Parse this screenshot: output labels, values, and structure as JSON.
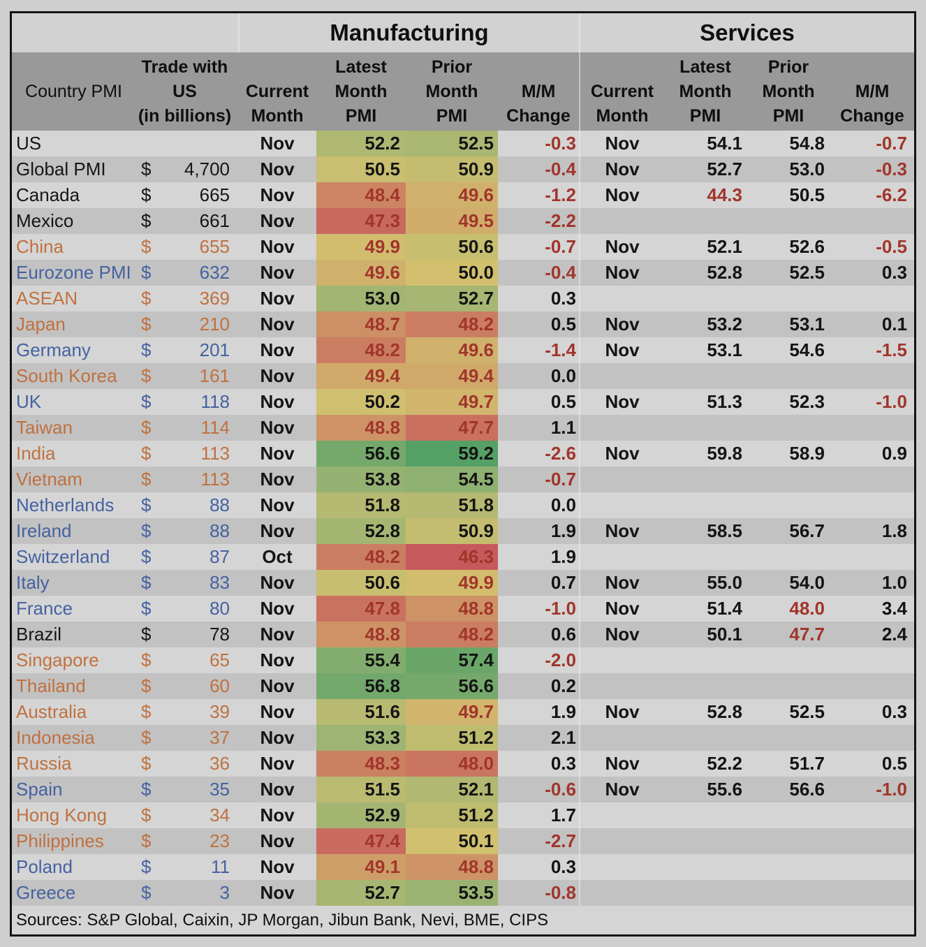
{
  "chart_data": {
    "type": "table",
    "group_headers": {
      "manufacturing": "Manufacturing",
      "services": "Services"
    },
    "columns": {
      "country": "Country PMI",
      "trade": "Trade with\nUS\n(in billions)",
      "m_month": "Current\nMonth",
      "m_latest": "Latest\nMonth\nPMI",
      "m_prior": "Prior\nMonth\nPMI",
      "m_change": "M/M\nChange",
      "s_month": "Current\nMonth",
      "s_latest": "Latest\nMonth\nPMI",
      "s_prior": "Prior\nMonth\nPMI",
      "s_change": "M/M\nChange"
    },
    "rows": [
      {
        "name": "US",
        "accent": "black",
        "trade": null,
        "m": [
          "Nov",
          52.2,
          52.5,
          -0.3
        ],
        "s": [
          "Nov",
          54.1,
          54.8,
          -0.7
        ]
      },
      {
        "name": "Global PMI",
        "accent": "black",
        "trade": "4,700",
        "m": [
          "Nov",
          50.5,
          50.9,
          -0.4
        ],
        "s": [
          "Nov",
          52.7,
          53.0,
          -0.3
        ]
      },
      {
        "name": "Canada",
        "accent": "black",
        "trade": "665",
        "m": [
          "Nov",
          48.4,
          49.6,
          -1.2
        ],
        "s": [
          "Nov",
          44.3,
          50.5,
          -6.2
        ]
      },
      {
        "name": "Mexico",
        "accent": "black",
        "trade": "661",
        "m": [
          "Nov",
          47.3,
          49.5,
          -2.2
        ],
        "s": null
      },
      {
        "name": "China",
        "accent": "orange",
        "trade": "655",
        "m": [
          "Nov",
          49.9,
          50.6,
          -0.7
        ],
        "s": [
          "Nov",
          52.1,
          52.6,
          -0.5
        ]
      },
      {
        "name": "Eurozone PMI",
        "accent": "blue",
        "trade": "632",
        "m": [
          "Nov",
          49.6,
          50.0,
          -0.4
        ],
        "s": [
          "Nov",
          52.8,
          52.5,
          0.3
        ]
      },
      {
        "name": "ASEAN",
        "accent": "orange",
        "trade": "369",
        "m": [
          "Nov",
          53.0,
          52.7,
          0.3
        ],
        "s": null
      },
      {
        "name": "Japan",
        "accent": "orange",
        "trade": "210",
        "m": [
          "Nov",
          48.7,
          48.2,
          0.5
        ],
        "s": [
          "Nov",
          53.2,
          53.1,
          0.1
        ]
      },
      {
        "name": "Germany",
        "accent": "blue",
        "trade": "201",
        "m": [
          "Nov",
          48.2,
          49.6,
          -1.4
        ],
        "s": [
          "Nov",
          53.1,
          54.6,
          -1.5
        ]
      },
      {
        "name": "South Korea",
        "accent": "orange",
        "trade": "161",
        "m": [
          "Nov",
          49.4,
          49.4,
          0.0
        ],
        "s": null
      },
      {
        "name": "UK",
        "accent": "blue",
        "trade": "118",
        "m": [
          "Nov",
          50.2,
          49.7,
          0.5
        ],
        "s": [
          "Nov",
          51.3,
          52.3,
          -1.0
        ]
      },
      {
        "name": "Taiwan",
        "accent": "orange",
        "trade": "114",
        "m": [
          "Nov",
          48.8,
          47.7,
          1.1
        ],
        "s": null
      },
      {
        "name": "India",
        "accent": "orange",
        "trade": "113",
        "m": [
          "Nov",
          56.6,
          59.2,
          -2.6
        ],
        "s": [
          "Nov",
          59.8,
          58.9,
          0.9
        ]
      },
      {
        "name": "Vietnam",
        "accent": "orange",
        "trade": "113",
        "m": [
          "Nov",
          53.8,
          54.5,
          -0.7
        ],
        "s": null
      },
      {
        "name": "Netherlands",
        "accent": "blue",
        "trade": "88",
        "m": [
          "Nov",
          51.8,
          51.8,
          0.0
        ],
        "s": null
      },
      {
        "name": "Ireland",
        "accent": "blue",
        "trade": "88",
        "m": [
          "Nov",
          52.8,
          50.9,
          1.9
        ],
        "s": [
          "Nov",
          58.5,
          56.7,
          1.8
        ]
      },
      {
        "name": "Switzerland",
        "accent": "blue",
        "trade": "87",
        "m": [
          "Oct",
          48.2,
          46.3,
          1.9
        ],
        "s": null
      },
      {
        "name": "Italy",
        "accent": "blue",
        "trade": "83",
        "m": [
          "Nov",
          50.6,
          49.9,
          0.7
        ],
        "s": [
          "Nov",
          55.0,
          54.0,
          1.0
        ]
      },
      {
        "name": "France",
        "accent": "blue",
        "trade": "80",
        "m": [
          "Nov",
          47.8,
          48.8,
          -1.0
        ],
        "s": [
          "Nov",
          51.4,
          48.0,
          3.4
        ]
      },
      {
        "name": "Brazil",
        "accent": "black",
        "trade": "78",
        "m": [
          "Nov",
          48.8,
          48.2,
          0.6
        ],
        "s": [
          "Nov",
          50.1,
          47.7,
          2.4
        ]
      },
      {
        "name": "Singapore",
        "accent": "orange",
        "trade": "65",
        "m": [
          "Nov",
          55.4,
          57.4,
          -2.0
        ],
        "s": null
      },
      {
        "name": "Thailand",
        "accent": "orange",
        "trade": "60",
        "m": [
          "Nov",
          56.8,
          56.6,
          0.2
        ],
        "s": null
      },
      {
        "name": "Australia",
        "accent": "orange",
        "trade": "39",
        "m": [
          "Nov",
          51.6,
          49.7,
          1.9
        ],
        "s": [
          "Nov",
          52.8,
          52.5,
          0.3
        ]
      },
      {
        "name": "Indonesia",
        "accent": "orange",
        "trade": "37",
        "m": [
          "Nov",
          53.3,
          51.2,
          2.1
        ],
        "s": null
      },
      {
        "name": "Russia",
        "accent": "orange",
        "trade": "36",
        "m": [
          "Nov",
          48.3,
          48.0,
          0.3
        ],
        "s": [
          "Nov",
          52.2,
          51.7,
          0.5
        ]
      },
      {
        "name": "Spain",
        "accent": "blue",
        "trade": "35",
        "m": [
          "Nov",
          51.5,
          52.1,
          -0.6
        ],
        "s": [
          "Nov",
          55.6,
          56.6,
          -1.0
        ]
      },
      {
        "name": "Hong Kong",
        "accent": "orange",
        "trade": "34",
        "m": [
          "Nov",
          52.9,
          51.2,
          1.7
        ],
        "s": null
      },
      {
        "name": "Philippines",
        "accent": "orange",
        "trade": "23",
        "m": [
          "Nov",
          47.4,
          50.1,
          -2.7
        ],
        "s": null
      },
      {
        "name": "Poland",
        "accent": "blue",
        "trade": "11",
        "m": [
          "Nov",
          49.1,
          48.8,
          0.3
        ],
        "s": null
      },
      {
        "name": "Greece",
        "accent": "blue",
        "trade": "3",
        "m": [
          "Nov",
          52.7,
          53.5,
          -0.8
        ],
        "s": null
      }
    ],
    "sources": "Sources: S&P Global, Caixin, JP Morgan, Jibun Bank, Nevi, BME, CIPS"
  },
  "colors": {
    "accent": {
      "black": "#161616",
      "orange": "#bf7140",
      "blue": "#4562a0"
    },
    "red_text": "#a1352b",
    "dark_text": "#141414",
    "stripe_light": "#d5d5d5",
    "stripe_dark": "#c2c2c2",
    "header_bg": "#999999",
    "title_bg": "#d2d2d2",
    "scale_stops": [
      {
        "v": 46.3,
        "c": "#c6595c"
      },
      {
        "v": 48.0,
        "c": "#ca7560"
      },
      {
        "v": 50.0,
        "c": "#d2c06f"
      },
      {
        "v": 53.5,
        "c": "#9ab373"
      },
      {
        "v": 59.2,
        "c": "#55a065"
      }
    ]
  }
}
